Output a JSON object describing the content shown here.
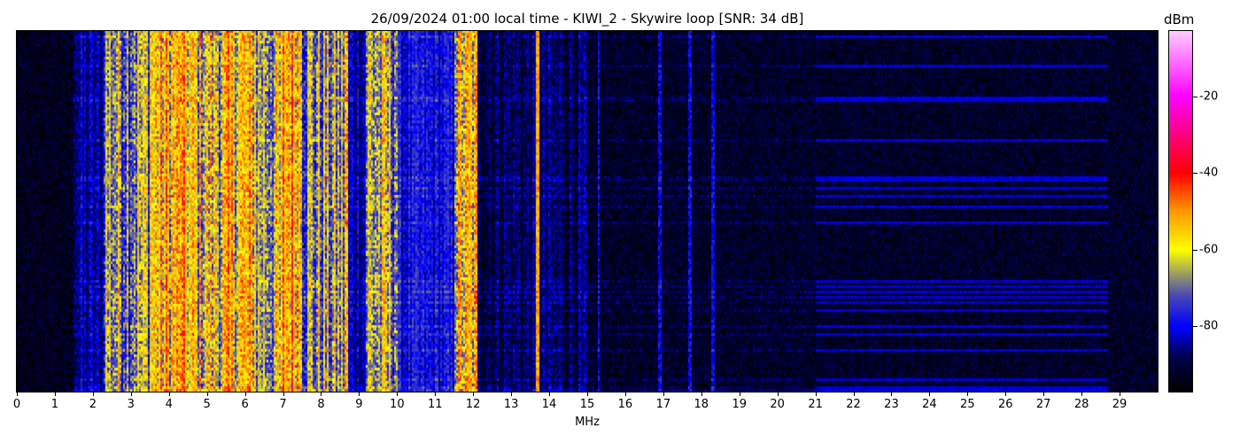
{
  "chart_data": {
    "type": "heatmap",
    "title": "26/09/2024 01:00 local time - KIWI_2 - Skywire loop [SNR: 34 dB]",
    "xlabel": "MHz",
    "xlim": [
      0,
      30
    ],
    "x_ticks": [
      "0",
      "1",
      "2",
      "3",
      "4",
      "5",
      "6",
      "7",
      "8",
      "9",
      "10",
      "11",
      "12",
      "13",
      "14",
      "15",
      "16",
      "17",
      "18",
      "19",
      "20",
      "21",
      "22",
      "23",
      "24",
      "25",
      "26",
      "27",
      "28",
      "29"
    ],
    "colorbar": {
      "label": "dBm",
      "range": [
        -97,
        -3
      ],
      "ticks": [
        "-20",
        "-40",
        "-60",
        "-80"
      ],
      "tick_values": [
        -20,
        -40,
        -60,
        -80
      ],
      "colormap": [
        {
          "v": -97,
          "c": "#000000"
        },
        {
          "v": -88,
          "c": "#00004a"
        },
        {
          "v": -80,
          "c": "#0000ff"
        },
        {
          "v": -72,
          "c": "#4848b8"
        },
        {
          "v": -67,
          "c": "#909070"
        },
        {
          "v": -60,
          "c": "#ffff00"
        },
        {
          "v": -50,
          "c": "#ff9a00"
        },
        {
          "v": -40,
          "c": "#ff0000"
        },
        {
          "v": -20,
          "c": "#ff00ff"
        },
        {
          "v": -3,
          "c": "#ffccff"
        }
      ]
    },
    "frequency_profile_dBm": [
      {
        "from": 0,
        "to": 1.5,
        "level": -93
      },
      {
        "from": 1.5,
        "to": 2.3,
        "level": -85
      },
      {
        "from": 2.3,
        "to": 3.5,
        "level": -66
      },
      {
        "from": 3.5,
        "to": 4.5,
        "level": -57
      },
      {
        "from": 4.5,
        "to": 5.5,
        "level": -61
      },
      {
        "from": 5.5,
        "to": 6.3,
        "level": -58
      },
      {
        "from": 6.3,
        "to": 7.0,
        "level": -65
      },
      {
        "from": 7.0,
        "to": 7.5,
        "level": -52
      },
      {
        "from": 7.5,
        "to": 8.7,
        "level": -68
      },
      {
        "from": 8.7,
        "to": 9.2,
        "level": -83
      },
      {
        "from": 9.2,
        "to": 10.0,
        "level": -66
      },
      {
        "from": 10.0,
        "to": 11.5,
        "level": -80
      },
      {
        "from": 11.5,
        "to": 12.1,
        "level": -60
      },
      {
        "from": 12.1,
        "to": 15.0,
        "level": -88
      },
      {
        "from": 15.0,
        "to": 30.0,
        "level": -92
      }
    ],
    "narrow_signals_MHz": [
      4.3,
      7.25,
      8.65,
      12.05,
      13.7,
      15.3,
      16.9,
      17.7,
      18.3
    ]
  }
}
